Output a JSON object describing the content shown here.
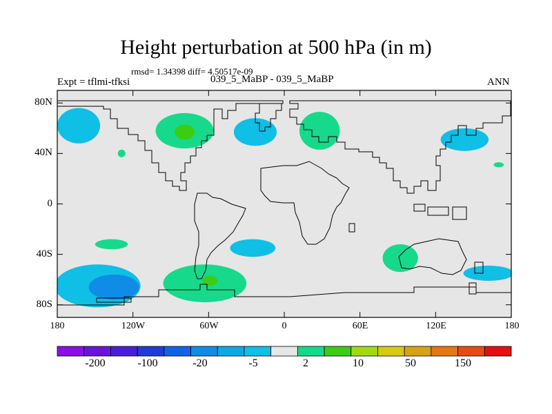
{
  "title": "Height perturbation at 500 hPa (in m)",
  "stats": "rmsd= 1.34398  diff= 4.50517e-09",
  "left_label": "Expt = tflmi-tfksi",
  "center_label": "039_5_MaBP - 039_5_MaBP",
  "right_label": "ANN",
  "colors": {
    "ocean_bg": "#e6e6e6",
    "cyan": "#0fbfe6",
    "mid_blue": "#0f8ce6",
    "green": "#17d98c",
    "bright_green": "#3ccc14",
    "coast": "#000000"
  },
  "chart_data": {
    "type": "heatmap",
    "title": "Height perturbation at 500 hPa (in m)",
    "x_axis": {
      "range": [
        -180,
        180
      ],
      "ticks": [
        -180,
        -120,
        -60,
        0,
        60,
        120,
        180
      ],
      "tick_labels": [
        "180",
        "120W",
        "60W",
        "0",
        "60E",
        "120E",
        "180"
      ]
    },
    "y_axis": {
      "range": [
        -90,
        90
      ],
      "ticks": [
        80,
        40,
        0,
        -40,
        -80
      ],
      "tick_labels": [
        "80N",
        "40N",
        "0",
        "40S",
        "80S"
      ]
    },
    "colorbar": {
      "labels": [
        "-200",
        "-100",
        "-20",
        "-5",
        "2",
        "10",
        "50",
        "150"
      ],
      "colors": [
        "#8c0fe6",
        "#6a14d9",
        "#4a1fd9",
        "#1f3cd9",
        "#0f64e6",
        "#0f8ce6",
        "#0fa8e6",
        "#0fbfe6",
        "#e6e6e6",
        "#17d98c",
        "#3ccc14",
        "#a0d914",
        "#d9c814",
        "#d9a014",
        "#e67814",
        "#e64c0f",
        "#e60f0f"
      ]
    },
    "anomaly_regions": [
      {
        "lon": -163,
        "lat": 62,
        "rlon": 17,
        "rlat": 14,
        "level": "cyan"
      },
      {
        "lon": -129,
        "lat": 40,
        "rlon": 3,
        "rlat": 3,
        "level": "green"
      },
      {
        "lon": -79,
        "lat": 58,
        "rlon": 23,
        "rlat": 14,
        "level": "green"
      },
      {
        "lon": -79,
        "lat": 57,
        "rlon": 8,
        "rlat": 6,
        "level": "bright_green"
      },
      {
        "lon": -23,
        "lat": 57,
        "rlon": 17,
        "rlat": 11,
        "level": "cyan"
      },
      {
        "lon": 28,
        "lat": 58,
        "rlon": 16,
        "rlat": 15,
        "level": "green"
      },
      {
        "lon": 143,
        "lat": 51,
        "rlon": 19,
        "rlat": 9,
        "level": "cyan"
      },
      {
        "lon": 170,
        "lat": 31,
        "rlon": 4,
        "rlat": 2,
        "level": "green"
      },
      {
        "lon": -137,
        "lat": -32,
        "rlon": 13,
        "rlat": 4,
        "level": "green"
      },
      {
        "lon": -148,
        "lat": -65,
        "rlon": 34,
        "rlat": 17,
        "level": "cyan"
      },
      {
        "lon": -135,
        "lat": -66,
        "rlon": 20,
        "rlat": 10,
        "level": "mid_blue"
      },
      {
        "lon": -63,
        "lat": -63,
        "rlon": 33,
        "rlat": 15,
        "level": "green"
      },
      {
        "lon": -59,
        "lat": -61,
        "rlon": 6,
        "rlat": 4,
        "level": "bright_green"
      },
      {
        "lon": -25,
        "lat": -35,
        "rlon": 18,
        "rlat": 7,
        "level": "cyan"
      },
      {
        "lon": 92,
        "lat": -43,
        "rlon": 14,
        "rlat": 11,
        "level": "green"
      },
      {
        "lon": 162,
        "lat": -55,
        "rlon": 20,
        "rlat": 6,
        "level": "cyan"
      }
    ]
  }
}
